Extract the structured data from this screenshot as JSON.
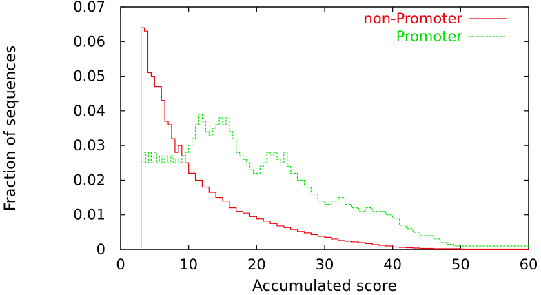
{
  "chart_data": {
    "type": "line",
    "xlabel": "Accumulated score",
    "ylabel": "Fraction of sequences",
    "xlim": [
      0,
      60
    ],
    "ylim": [
      0,
      0.07
    ],
    "x_ticks": [
      0,
      10,
      20,
      30,
      40,
      50,
      60
    ],
    "x_tick_labels": [
      "0",
      "10",
      "20",
      "30",
      "40",
      "50",
      "60"
    ],
    "y_ticks": [
      0,
      0.01,
      0.02,
      0.03,
      0.04,
      0.05,
      0.06,
      0.07
    ],
    "y_tick_labels": [
      "0",
      "0.01",
      "0.02",
      "0.03",
      "0.04",
      "0.05",
      "0.06",
      "0.07"
    ],
    "grid": false,
    "legend_position": "top-right",
    "series": [
      {
        "name": "non-Promoter",
        "color": "#e8000b",
        "style": "solid",
        "step": true,
        "points": [
          [
            3,
            0
          ],
          [
            3,
            0.064
          ],
          [
            3.5,
            0.063
          ],
          [
            4,
            0.051
          ],
          [
            4.5,
            0.05
          ],
          [
            5,
            0.047
          ],
          [
            5.5,
            0.047
          ],
          [
            6,
            0.043
          ],
          [
            6.5,
            0.037
          ],
          [
            7,
            0.036
          ],
          [
            7.5,
            0.032
          ],
          [
            8,
            0.028
          ],
          [
            8.5,
            0.03
          ],
          [
            9,
            0.027
          ],
          [
            9.5,
            0.025
          ],
          [
            10,
            0.022
          ],
          [
            11,
            0.02
          ],
          [
            12,
            0.018
          ],
          [
            13,
            0.0165
          ],
          [
            14,
            0.015
          ],
          [
            15,
            0.014
          ],
          [
            16,
            0.012
          ],
          [
            17,
            0.011
          ],
          [
            18,
            0.0105
          ],
          [
            19,
            0.0095
          ],
          [
            20,
            0.0088
          ],
          [
            21,
            0.0082
          ],
          [
            22,
            0.0075
          ],
          [
            23,
            0.0068
          ],
          [
            24,
            0.0063
          ],
          [
            25,
            0.0058
          ],
          [
            26,
            0.0052
          ],
          [
            27,
            0.0048
          ],
          [
            28,
            0.0043
          ],
          [
            29,
            0.0038
          ],
          [
            30,
            0.0035
          ],
          [
            31,
            0.003
          ],
          [
            32,
            0.0026
          ],
          [
            33,
            0.0024
          ],
          [
            34,
            0.0022
          ],
          [
            35,
            0.002
          ],
          [
            36,
            0.0017
          ],
          [
            37,
            0.0014
          ],
          [
            38,
            0.0012
          ],
          [
            39,
            0.001
          ],
          [
            40,
            0.0007
          ],
          [
            41,
            0.0006
          ],
          [
            42,
            0.0005
          ],
          [
            43,
            0.0004
          ],
          [
            44,
            0.0003
          ],
          [
            45,
            0.0003
          ],
          [
            46,
            0.0002
          ],
          [
            48,
            0.0002
          ],
          [
            50,
            0.0001
          ],
          [
            55,
            0.0001
          ],
          [
            60,
            0.0001
          ]
        ]
      },
      {
        "name": "Promoter",
        "color": "#00dd00",
        "style": "dashed",
        "step": true,
        "points": [
          [
            3,
            0
          ],
          [
            3,
            0.025
          ],
          [
            3.3,
            0.028
          ],
          [
            3.7,
            0.025
          ],
          [
            4.1,
            0.028
          ],
          [
            4.5,
            0.025
          ],
          [
            4.9,
            0.028
          ],
          [
            5.3,
            0.025
          ],
          [
            5.7,
            0.027
          ],
          [
            6.1,
            0.025
          ],
          [
            6.5,
            0.027
          ],
          [
            6.9,
            0.025
          ],
          [
            7.3,
            0.027
          ],
          [
            7.7,
            0.025
          ],
          [
            8.1,
            0.026
          ],
          [
            8.5,
            0.025
          ],
          [
            9,
            0.027
          ],
          [
            9.5,
            0.028
          ],
          [
            10,
            0.03
          ],
          [
            10.5,
            0.032
          ],
          [
            11,
            0.036
          ],
          [
            11.5,
            0.039
          ],
          [
            12,
            0.037
          ],
          [
            12.5,
            0.034
          ],
          [
            13,
            0.033
          ],
          [
            13.5,
            0.035
          ],
          [
            14,
            0.036
          ],
          [
            14.5,
            0.038
          ],
          [
            15,
            0.036
          ],
          [
            15.5,
            0.038
          ],
          [
            16,
            0.034
          ],
          [
            16.5,
            0.032
          ],
          [
            17,
            0.028
          ],
          [
            17.5,
            0.027
          ],
          [
            18,
            0.026
          ],
          [
            18.5,
            0.025
          ],
          [
            19,
            0.023
          ],
          [
            19.5,
            0.022
          ],
          [
            20,
            0.022
          ],
          [
            20.5,
            0.024
          ],
          [
            21,
            0.025
          ],
          [
            21.5,
            0.028
          ],
          [
            22,
            0.027
          ],
          [
            22.5,
            0.028
          ],
          [
            23,
            0.026
          ],
          [
            23.5,
            0.025
          ],
          [
            24,
            0.028
          ],
          [
            24.5,
            0.024
          ],
          [
            25,
            0.022
          ],
          [
            26,
            0.02
          ],
          [
            27,
            0.018
          ],
          [
            28,
            0.016
          ],
          [
            29,
            0.014
          ],
          [
            30,
            0.013
          ],
          [
            31,
            0.014
          ],
          [
            32,
            0.015
          ],
          [
            33,
            0.013
          ],
          [
            34,
            0.012
          ],
          [
            35,
            0.011
          ],
          [
            36,
            0.012
          ],
          [
            37,
            0.011
          ],
          [
            38,
            0.011
          ],
          [
            39,
            0.01
          ],
          [
            40,
            0.009
          ],
          [
            41,
            0.007
          ],
          [
            42,
            0.006
          ],
          [
            43,
            0.005
          ],
          [
            44,
            0.004
          ],
          [
            45,
            0.004
          ],
          [
            46,
            0.003
          ],
          [
            47,
            0.002
          ],
          [
            48,
            0.0015
          ],
          [
            49,
            0.001
          ],
          [
            55,
            0.001
          ],
          [
            60,
            0.0008
          ]
        ]
      }
    ]
  }
}
